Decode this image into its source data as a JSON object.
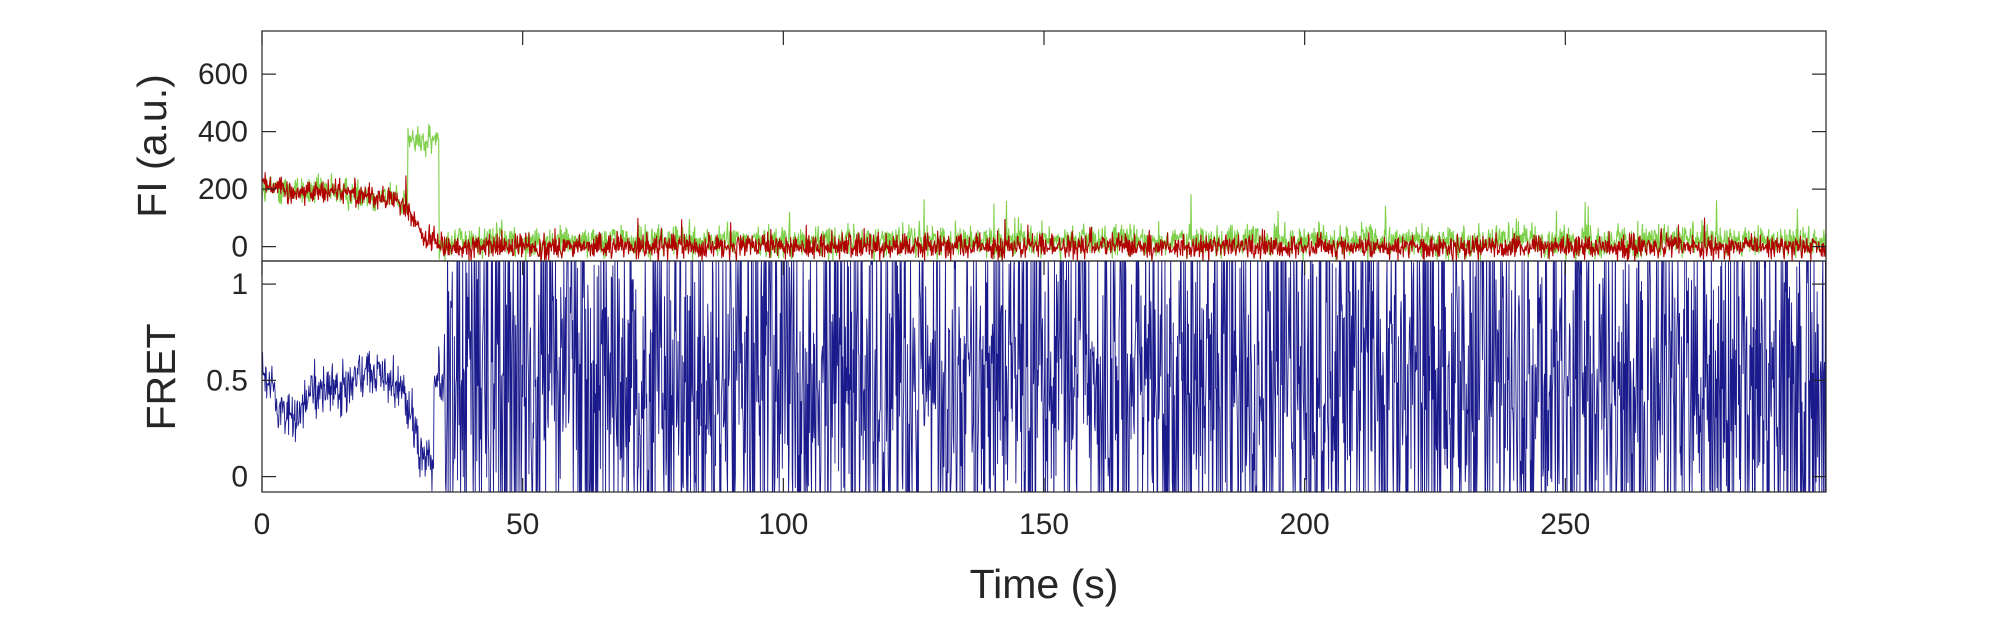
{
  "chart_data": [
    {
      "type": "line",
      "panel": "top",
      "ylabel": "FI (a.u.)",
      "xlim": [
        0,
        300
      ],
      "ylim": [
        -50,
        750
      ],
      "yticks": [
        0,
        200,
        400,
        600
      ],
      "grid": false,
      "colors": {
        "donor": "#7ed04a",
        "acceptor": "#b00000"
      },
      "series": [
        {
          "key": "donor",
          "color": "#7ed04a",
          "segments": [
            {
              "x": [
                0,
                5,
                10,
                15,
                20,
                25,
                28
              ],
              "y": [
                200,
                200,
                190,
                190,
                180,
                170,
                150
              ]
            },
            {
              "x": [
                28,
                30,
                34
              ],
              "y": [
                380,
                360,
                370
              ]
            },
            {
              "x": [
                35,
                300
              ],
              "y": [
                20,
                20
              ]
            }
          ],
          "noise": 45
        },
        {
          "key": "acceptor",
          "color": "#b00000",
          "segments": [
            {
              "x": [
                0,
                5,
                10,
                15,
                20,
                25,
                28,
                31,
                34
              ],
              "y": [
                230,
                190,
                190,
                200,
                180,
                160,
                130,
                30,
                10
              ]
            },
            {
              "x": [
                35,
                300
              ],
              "y": [
                0,
                0
              ]
            }
          ],
          "noise": 35
        }
      ]
    },
    {
      "type": "line",
      "panel": "bottom",
      "ylabel": "FRET",
      "xlabel": "Time (s)",
      "xlim": [
        0,
        300
      ],
      "ylim": [
        -0.08,
        1.12
      ],
      "xticks": [
        0,
        50,
        100,
        150,
        200,
        250
      ],
      "yticks": [
        0,
        0.5,
        1
      ],
      "ytick_labels": [
        "0",
        "0.5",
        "1"
      ],
      "grid": false,
      "series": [
        {
          "key": "fret",
          "color": "#1a1a8c",
          "segments": [
            {
              "x": [
                0,
                3,
                6,
                10,
                15,
                20,
                24,
                27,
                30,
                33
              ],
              "y": [
                0.55,
                0.35,
                0.3,
                0.45,
                0.45,
                0.55,
                0.5,
                0.45,
                0.15,
                0.05
              ]
            },
            {
              "x": [
                35,
                300
              ],
              "y": [
                0.5,
                0.5
              ]
            }
          ],
          "noise_early": 0.12,
          "noise_late": 0.6,
          "late_start": 35
        }
      ]
    }
  ]
}
